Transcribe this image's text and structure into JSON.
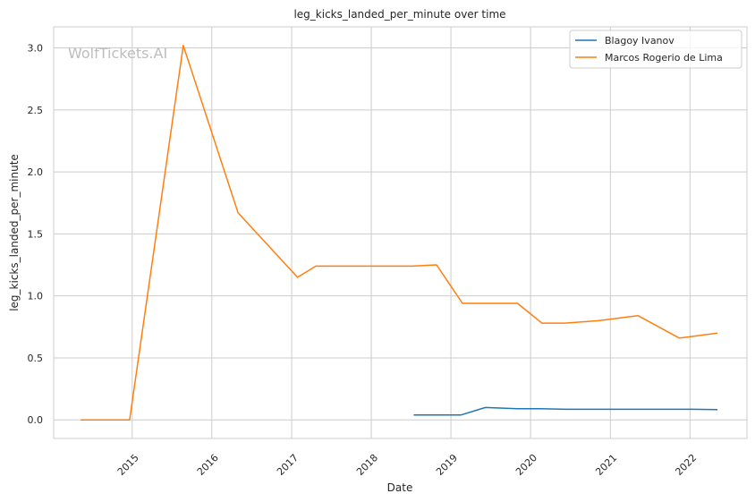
{
  "watermark": "WolfTickets.AI",
  "chart_data": {
    "type": "line",
    "title": "leg_kicks_landed_per_minute over time",
    "xlabel": "Date",
    "ylabel": "leg_kicks_landed_per_minute",
    "xlim": [
      "2014-01-06",
      "2022-09-19"
    ],
    "ylim": [
      -0.15,
      3.17
    ],
    "x_ticks": [
      {
        "date": "2015-01-01",
        "label": "2015"
      },
      {
        "date": "2016-01-01",
        "label": "2016"
      },
      {
        "date": "2017-01-01",
        "label": "2017"
      },
      {
        "date": "2018-01-01",
        "label": "2018"
      },
      {
        "date": "2019-01-01",
        "label": "2019"
      },
      {
        "date": "2020-01-01",
        "label": "2020"
      },
      {
        "date": "2021-01-01",
        "label": "2021"
      },
      {
        "date": "2022-01-01",
        "label": "2022"
      }
    ],
    "y_ticks": [
      {
        "value": 0.0,
        "label": "0.0"
      },
      {
        "value": 0.5,
        "label": "0.5"
      },
      {
        "value": 1.0,
        "label": "1.0"
      },
      {
        "value": 1.5,
        "label": "1.5"
      },
      {
        "value": 2.0,
        "label": "2.0"
      },
      {
        "value": 2.5,
        "label": "2.5"
      },
      {
        "value": 3.0,
        "label": "3.0"
      }
    ],
    "grid": true,
    "legend_position": "top-right",
    "series": [
      {
        "name": "Blagoy Ivanov",
        "color": "#1f77b4",
        "points": [
          {
            "x": "2018-07-14",
            "y": 0.04
          },
          {
            "x": "2019-02-17",
            "y": 0.04
          },
          {
            "x": "2019-06-08",
            "y": 0.1
          },
          {
            "x": "2019-11-02",
            "y": 0.09
          },
          {
            "x": "2020-02-15",
            "y": 0.09
          },
          {
            "x": "2020-06-13",
            "y": 0.085
          },
          {
            "x": "2021-03-06",
            "y": 0.085
          },
          {
            "x": "2022-01-15",
            "y": 0.085
          },
          {
            "x": "2022-05-07",
            "y": 0.083
          }
        ]
      },
      {
        "name": "Marcos Rogerio de Lima",
        "color": "#ff7f0e",
        "points": [
          {
            "x": "2014-05-10",
            "y": 0.0
          },
          {
            "x": "2014-12-20",
            "y": 0.0
          },
          {
            "x": "2015-08-23",
            "y": 3.02
          },
          {
            "x": "2016-04-30",
            "y": 1.67
          },
          {
            "x": "2017-01-28",
            "y": 1.15
          },
          {
            "x": "2017-04-22",
            "y": 1.24
          },
          {
            "x": "2018-07-07",
            "y": 1.24
          },
          {
            "x": "2018-10-27",
            "y": 1.25
          },
          {
            "x": "2019-02-23",
            "y": 0.94
          },
          {
            "x": "2019-11-02",
            "y": 0.94
          },
          {
            "x": "2020-02-22",
            "y": 0.78
          },
          {
            "x": "2020-06-06",
            "y": 0.78
          },
          {
            "x": "2020-11-07",
            "y": 0.8
          },
          {
            "x": "2021-05-08",
            "y": 0.84
          },
          {
            "x": "2021-11-13",
            "y": 0.66
          },
          {
            "x": "2022-05-07",
            "y": 0.7
          }
        ]
      }
    ]
  }
}
